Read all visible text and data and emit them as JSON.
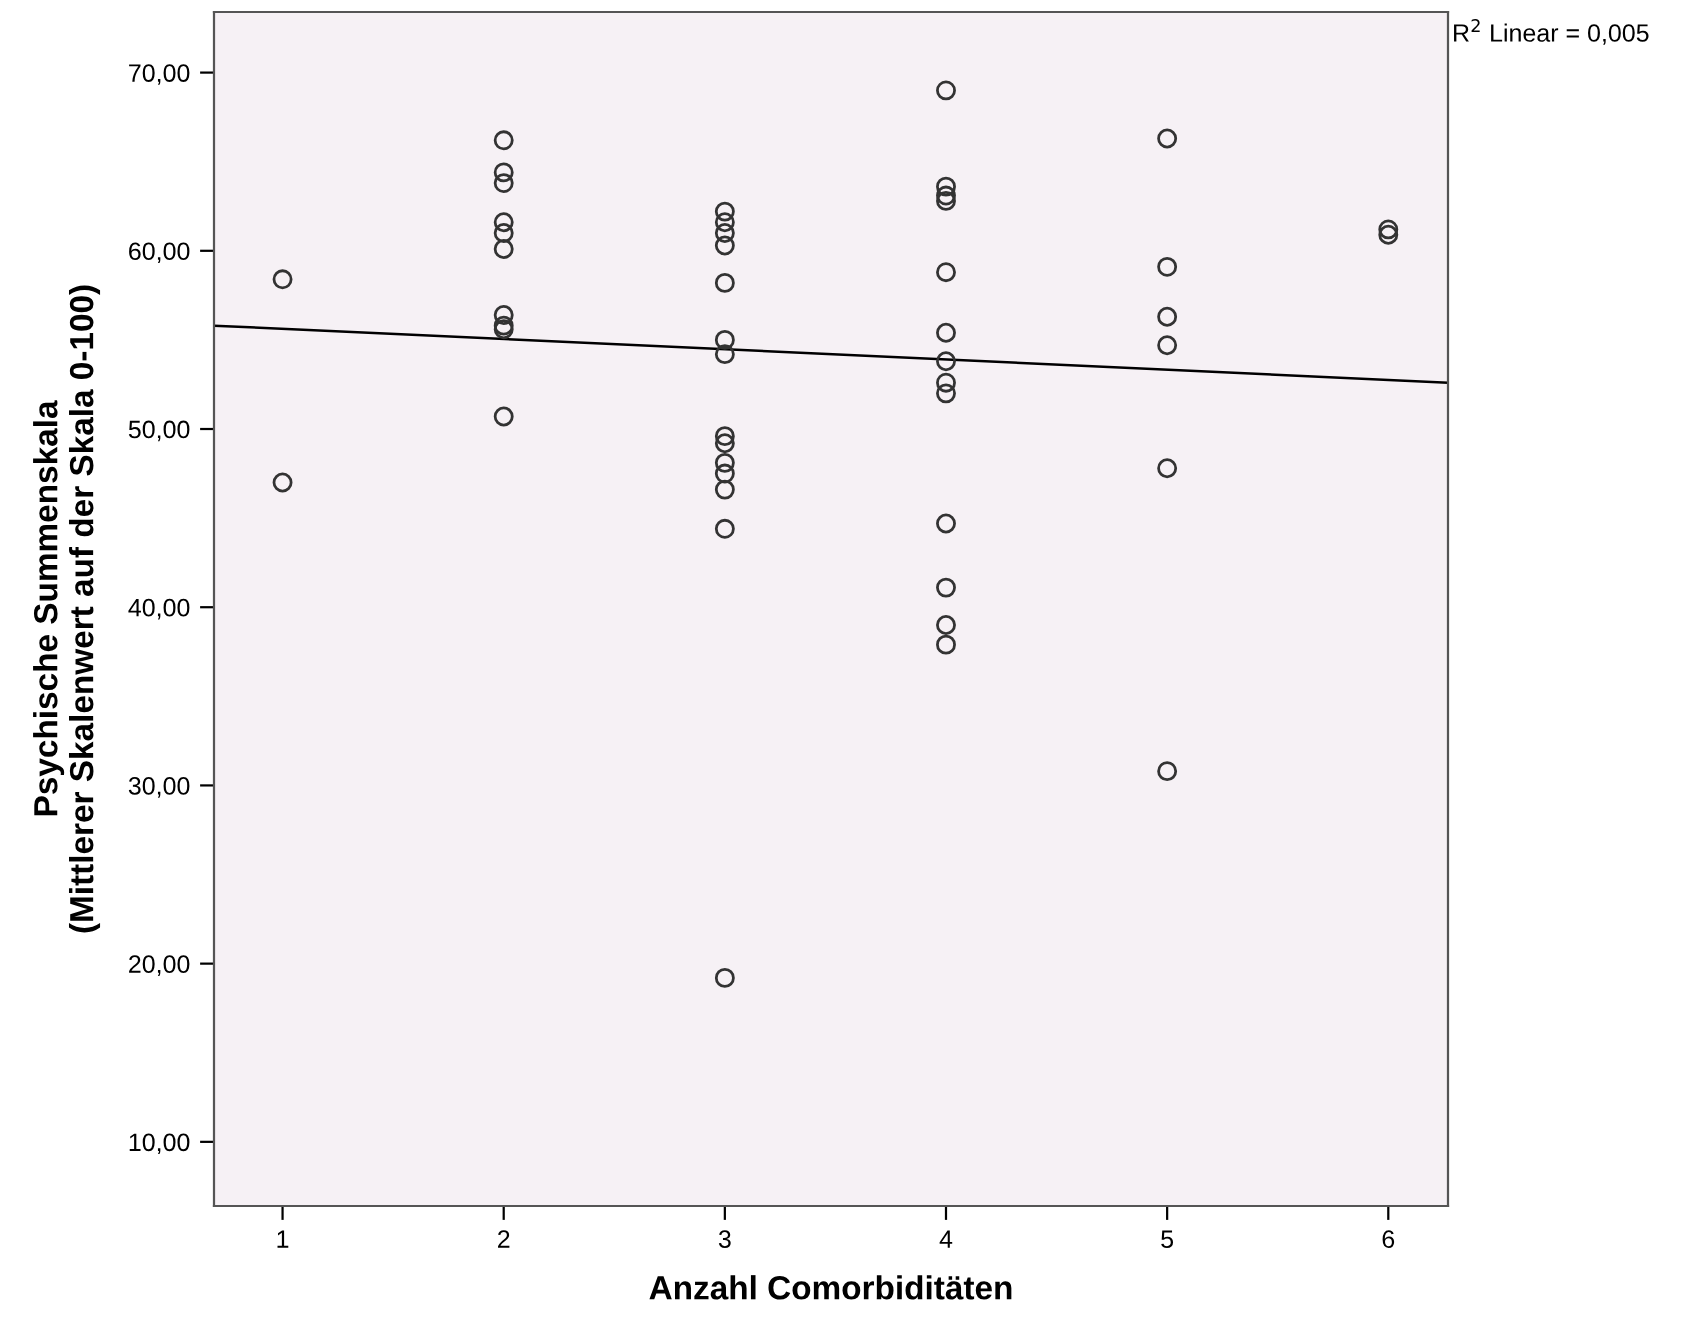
{
  "chart_data": {
    "type": "scatter",
    "xlabel": "Anzahl Comorbiditäten",
    "ylabel": "Psychische Summenskala\n(Mittlerer Skalenwert auf der Skala 0-100)",
    "annotations": [
      "R$^{2}$ Linear = 0,005"
    ],
    "series": [
      {
        "color": "#333333",
        "marker": "circle",
        "x": [
          1,
          1,
          2,
          2,
          2,
          2,
          2,
          2,
          2,
          2,
          2,
          2,
          3,
          3,
          3,
          3,
          3,
          3,
          3,
          3,
          3,
          3,
          3,
          3,
          3,
          3,
          4,
          4,
          4,
          4,
          4,
          4,
          4,
          4,
          4,
          4,
          4,
          4,
          4,
          5,
          5,
          5,
          5,
          5,
          5,
          6,
          6
        ],
        "values": [
          58.4,
          47.0,
          66.2,
          64.4,
          63.8,
          61.6,
          61.0,
          60.1,
          56.4,
          55.8,
          55.6,
          50.7,
          62.2,
          61.6,
          61.0,
          60.3,
          58.2,
          55.0,
          54.2,
          49.6,
          49.2,
          48.1,
          47.5,
          46.6,
          44.4,
          19.2,
          69.0,
          63.6,
          63.1,
          62.8,
          58.8,
          55.4,
          53.8,
          52.6,
          52.0,
          44.7,
          41.1,
          39.0,
          37.9,
          66.3,
          59.1,
          56.3,
          54.7,
          47.8,
          30.8,
          61.2,
          60.9
        ]
      },
      {
        "type": "line",
        "color": "#000000",
        "x": [
          0.69,
          6.27
        ],
        "values": [
          55.8,
          52.6
        ]
      }
    ],
    "xlim": [
      0.69,
      6.27
    ],
    "ylim": [
      6.4,
      73.4
    ],
    "xticks": [
      1,
      2,
      3,
      4,
      5,
      6
    ],
    "yticks": [
      {
        "value": 10,
        "label": "10,00"
      },
      {
        "value": 20,
        "label": "20,00"
      },
      {
        "value": 30,
        "label": "30,00"
      },
      {
        "value": 40,
        "label": "40,00"
      },
      {
        "value": 50,
        "label": "50,00"
      },
      {
        "value": 60,
        "label": "60,00"
      },
      {
        "value": 70,
        "label": "70,00"
      }
    ],
    "grid": false
  }
}
